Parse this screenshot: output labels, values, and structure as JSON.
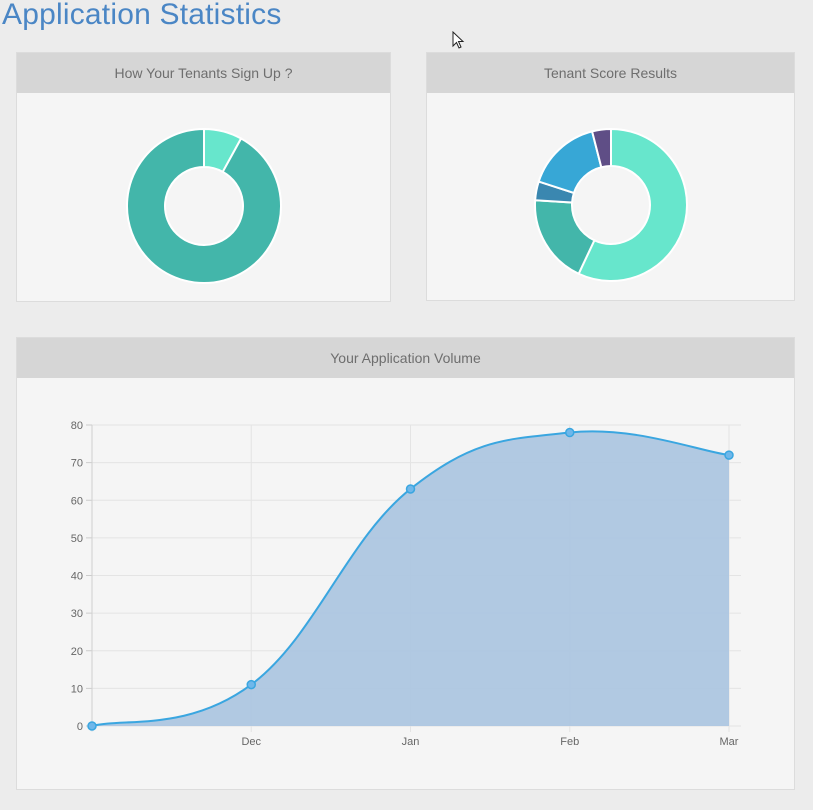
{
  "page": {
    "title": "Application Statistics"
  },
  "panels": {
    "signup": {
      "title": "How Your Tenants Sign Up ?"
    },
    "score": {
      "title": "Tenant Score Results"
    },
    "volume": {
      "title": "Your Application Volume"
    }
  },
  "chart_data": [
    {
      "type": "pie",
      "variant": "doughnut",
      "title": "How Your Tenants Sign Up ?",
      "values": [
        8,
        92
      ],
      "colors": [
        "#67e6cc",
        "#43b6aa"
      ]
    },
    {
      "type": "pie",
      "variant": "doughnut",
      "title": "Tenant Score Results",
      "values": [
        57,
        19,
        4,
        16,
        4
      ],
      "colors": [
        "#67e6cc",
        "#43b6aa",
        "#3a87b0",
        "#37a7d6",
        "#5f4e86"
      ]
    },
    {
      "type": "area",
      "title": "Your Application Volume",
      "categories": [
        "",
        "Dec",
        "Jan",
        "Feb",
        "Mar"
      ],
      "values": [
        0,
        11,
        63,
        78,
        72
      ],
      "ylim": [
        0,
        80
      ],
      "yticks": [
        0,
        10,
        20,
        30,
        40,
        50,
        60,
        70,
        80
      ],
      "grid": true,
      "line_color": "#3aa6e0",
      "fill_color": "#adc6e0"
    }
  ]
}
